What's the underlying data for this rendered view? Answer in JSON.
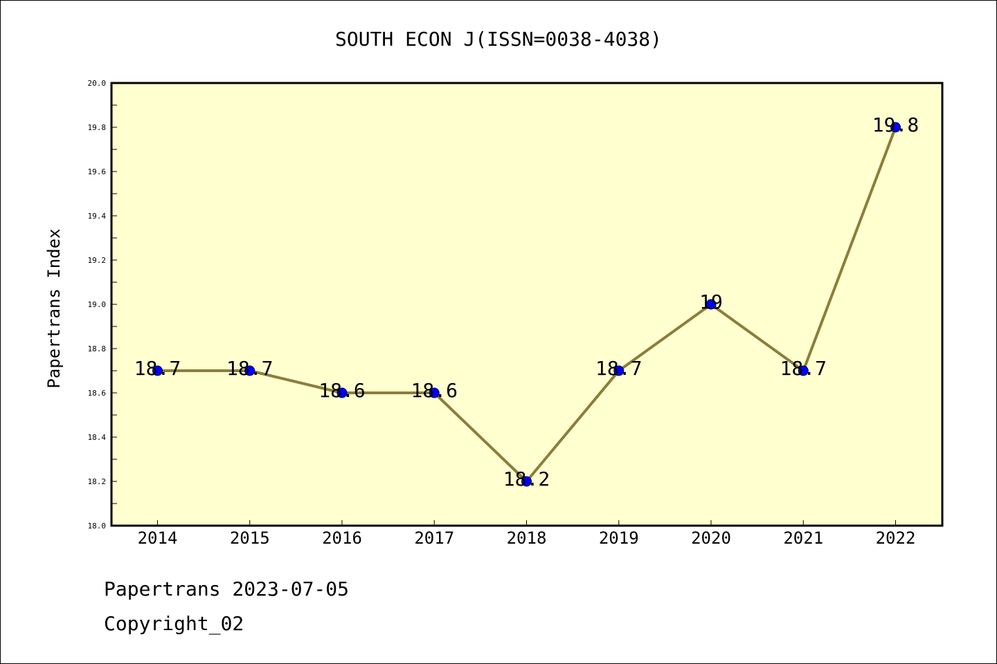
{
  "chart_data": {
    "type": "line",
    "title": "SOUTH ECON J(ISSN=0038-4038)",
    "xlabel": "",
    "ylabel": "Papertrans Index",
    "categories": [
      "2014",
      "2015",
      "2016",
      "2017",
      "2018",
      "2019",
      "2020",
      "2021",
      "2022"
    ],
    "series": [
      {
        "values": [
          18.7,
          18.7,
          18.6,
          18.6,
          18.2,
          18.7,
          19.0,
          18.7,
          19.8
        ],
        "labels": [
          "18.7",
          "18.7",
          "18.6",
          "18.6",
          "18.2",
          "18.7",
          "19",
          "18.7",
          "19.8"
        ]
      }
    ],
    "ylim": [
      18.0,
      20.0
    ],
    "yticks": [
      "18.0",
      "18.2",
      "18.4",
      "18.6",
      "18.8",
      "19.0",
      "19.2",
      "19.4",
      "19.6",
      "19.8",
      "20.0"
    ],
    "grid": false,
    "colors": {
      "plot_background": "#ffffd0",
      "line": "#8c7d3a",
      "marker": "#0000ff",
      "axis": "#000000"
    }
  },
  "footer": {
    "line1": "Papertrans 2023-07-05",
    "line2": "Copyright_02"
  }
}
